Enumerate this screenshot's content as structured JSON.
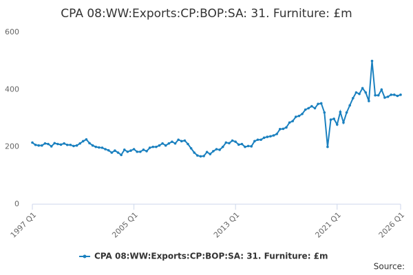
{
  "chart_data": {
    "type": "line",
    "title": "CPA 08:WW:Exports:CP:BOP:SA: 31. Furniture: £m",
    "source": "Source:",
    "categories": [
      "1997 Q1",
      null,
      null,
      null,
      null,
      null,
      null,
      null,
      null,
      null,
      null,
      null,
      null,
      null,
      null,
      null,
      null,
      null,
      null,
      null,
      null,
      null,
      null,
      null,
      null,
      null,
      null,
      null,
      null,
      null,
      null,
      null,
      "2005 Q1",
      null,
      null,
      null,
      null,
      null,
      null,
      null,
      null,
      null,
      null,
      null,
      null,
      null,
      null,
      null,
      null,
      null,
      null,
      null,
      null,
      null,
      null,
      null,
      null,
      null,
      null,
      null,
      null,
      null,
      null,
      null,
      "2013 Q1",
      null,
      null,
      null,
      null,
      null,
      null,
      null,
      null,
      null,
      null,
      null,
      null,
      null,
      null,
      null,
      null,
      null,
      null,
      null,
      null,
      null,
      null,
      null,
      null,
      null,
      null,
      null,
      null,
      null,
      null,
      null,
      "2021 Q1",
      null,
      null,
      null,
      null,
      null,
      null,
      null,
      null,
      null,
      null,
      null,
      null,
      null,
      null,
      null,
      null,
      null,
      null,
      null,
      "2026 Q1"
    ],
    "series": [
      {
        "name": "CPA 08:WW:Exports:CP:BOP:SA: 31. Furniture: £m",
        "color": "#1a80bf",
        "values": [
          215,
          207,
          205,
          205,
          212,
          210,
          202,
          213,
          210,
          208,
          212,
          207,
          207,
          203,
          205,
          212,
          220,
          226,
          213,
          205,
          200,
          198,
          197,
          192,
          188,
          180,
          187,
          180,
          172,
          190,
          183,
          187,
          192,
          183,
          183,
          190,
          185,
          197,
          200,
          200,
          205,
          212,
          205,
          212,
          218,
          212,
          225,
          220,
          222,
          210,
          195,
          180,
          170,
          167,
          168,
          182,
          175,
          185,
          192,
          190,
          200,
          215,
          213,
          222,
          218,
          208,
          210,
          200,
          203,
          202,
          220,
          225,
          225,
          232,
          235,
          237,
          240,
          245,
          262,
          263,
          268,
          285,
          290,
          305,
          308,
          315,
          330,
          335,
          342,
          335,
          350,
          352,
          320,
          200,
          295,
          298,
          278,
          322,
          285,
          320,
          345,
          370,
          390,
          385,
          405,
          390,
          360,
          500,
          380,
          380,
          400,
          372,
          375,
          382,
          382,
          378,
          382
        ]
      }
    ],
    "ylim": [
      0,
      600
    ],
    "yticks": [
      0,
      200,
      400,
      600
    ],
    "grid": false,
    "legend": "bottom"
  }
}
